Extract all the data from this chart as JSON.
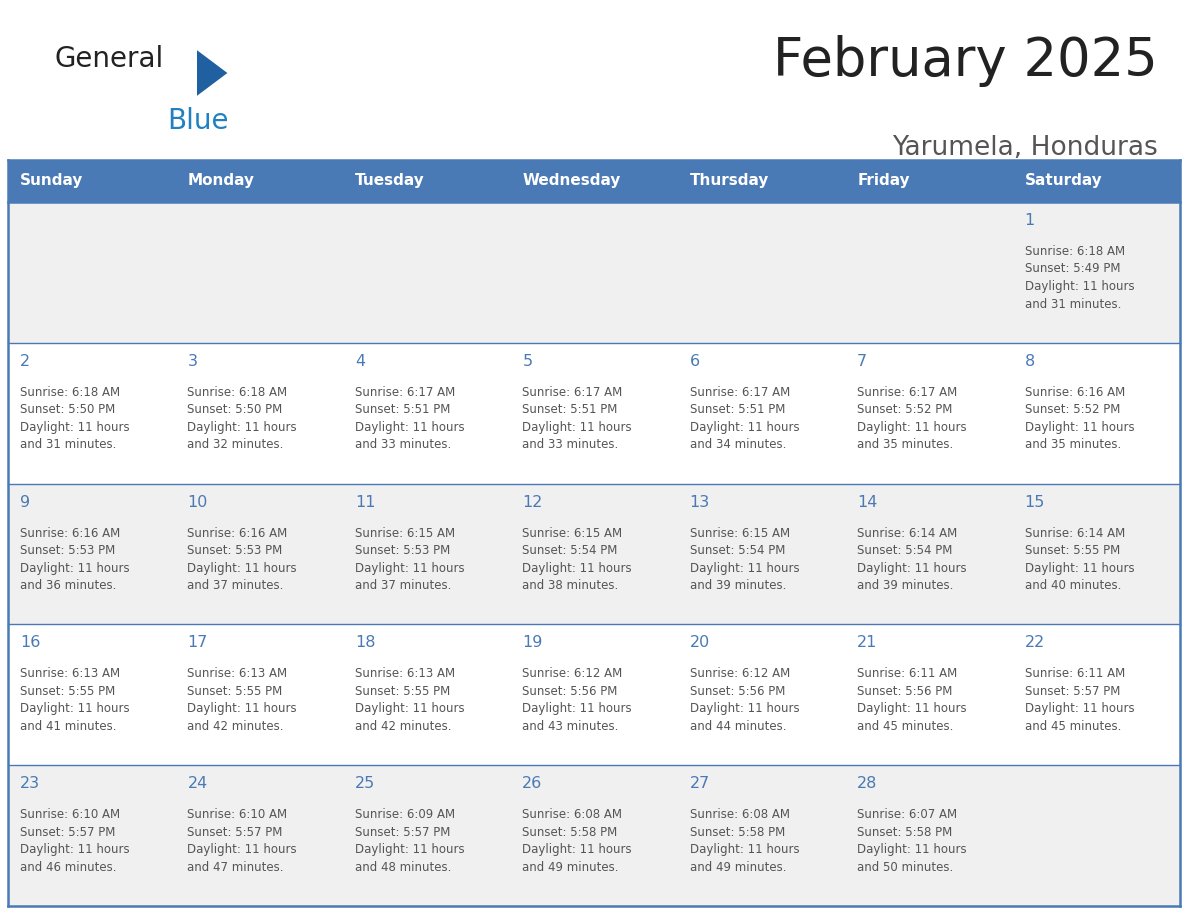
{
  "title": "February 2025",
  "subtitle": "Yarumela, Honduras",
  "days_of_week": [
    "Sunday",
    "Monday",
    "Tuesday",
    "Wednesday",
    "Thursday",
    "Friday",
    "Saturday"
  ],
  "header_bg": "#4a7ab5",
  "header_text": "#ffffff",
  "cell_bg_odd": "#f0f0f0",
  "cell_bg_even": "#ffffff",
  "border_color": "#4a7ab5",
  "day_number_color": "#4a7ab5",
  "info_text_color": "#555555",
  "title_color": "#222222",
  "subtitle_color": "#555555",
  "logo_general_color": "#222222",
  "logo_blue_color": "#2080c0",
  "logo_triangle_color": "#2060a0",
  "calendar_data": [
    {
      "day": 1,
      "row": 0,
      "col": 6,
      "sunrise": "6:18 AM",
      "sunset": "5:49 PM",
      "daylight_hours": 11,
      "daylight_minutes": 31
    },
    {
      "day": 2,
      "row": 1,
      "col": 0,
      "sunrise": "6:18 AM",
      "sunset": "5:50 PM",
      "daylight_hours": 11,
      "daylight_minutes": 31
    },
    {
      "day": 3,
      "row": 1,
      "col": 1,
      "sunrise": "6:18 AM",
      "sunset": "5:50 PM",
      "daylight_hours": 11,
      "daylight_minutes": 32
    },
    {
      "day": 4,
      "row": 1,
      "col": 2,
      "sunrise": "6:17 AM",
      "sunset": "5:51 PM",
      "daylight_hours": 11,
      "daylight_minutes": 33
    },
    {
      "day": 5,
      "row": 1,
      "col": 3,
      "sunrise": "6:17 AM",
      "sunset": "5:51 PM",
      "daylight_hours": 11,
      "daylight_minutes": 33
    },
    {
      "day": 6,
      "row": 1,
      "col": 4,
      "sunrise": "6:17 AM",
      "sunset": "5:51 PM",
      "daylight_hours": 11,
      "daylight_minutes": 34
    },
    {
      "day": 7,
      "row": 1,
      "col": 5,
      "sunrise": "6:17 AM",
      "sunset": "5:52 PM",
      "daylight_hours": 11,
      "daylight_minutes": 35
    },
    {
      "day": 8,
      "row": 1,
      "col": 6,
      "sunrise": "6:16 AM",
      "sunset": "5:52 PM",
      "daylight_hours": 11,
      "daylight_minutes": 35
    },
    {
      "day": 9,
      "row": 2,
      "col": 0,
      "sunrise": "6:16 AM",
      "sunset": "5:53 PM",
      "daylight_hours": 11,
      "daylight_minutes": 36
    },
    {
      "day": 10,
      "row": 2,
      "col": 1,
      "sunrise": "6:16 AM",
      "sunset": "5:53 PM",
      "daylight_hours": 11,
      "daylight_minutes": 37
    },
    {
      "day": 11,
      "row": 2,
      "col": 2,
      "sunrise": "6:15 AM",
      "sunset": "5:53 PM",
      "daylight_hours": 11,
      "daylight_minutes": 37
    },
    {
      "day": 12,
      "row": 2,
      "col": 3,
      "sunrise": "6:15 AM",
      "sunset": "5:54 PM",
      "daylight_hours": 11,
      "daylight_minutes": 38
    },
    {
      "day": 13,
      "row": 2,
      "col": 4,
      "sunrise": "6:15 AM",
      "sunset": "5:54 PM",
      "daylight_hours": 11,
      "daylight_minutes": 39
    },
    {
      "day": 14,
      "row": 2,
      "col": 5,
      "sunrise": "6:14 AM",
      "sunset": "5:54 PM",
      "daylight_hours": 11,
      "daylight_minutes": 39
    },
    {
      "day": 15,
      "row": 2,
      "col": 6,
      "sunrise": "6:14 AM",
      "sunset": "5:55 PM",
      "daylight_hours": 11,
      "daylight_minutes": 40
    },
    {
      "day": 16,
      "row": 3,
      "col": 0,
      "sunrise": "6:13 AM",
      "sunset": "5:55 PM",
      "daylight_hours": 11,
      "daylight_minutes": 41
    },
    {
      "day": 17,
      "row": 3,
      "col": 1,
      "sunrise": "6:13 AM",
      "sunset": "5:55 PM",
      "daylight_hours": 11,
      "daylight_minutes": 42
    },
    {
      "day": 18,
      "row": 3,
      "col": 2,
      "sunrise": "6:13 AM",
      "sunset": "5:55 PM",
      "daylight_hours": 11,
      "daylight_minutes": 42
    },
    {
      "day": 19,
      "row": 3,
      "col": 3,
      "sunrise": "6:12 AM",
      "sunset": "5:56 PM",
      "daylight_hours": 11,
      "daylight_minutes": 43
    },
    {
      "day": 20,
      "row": 3,
      "col": 4,
      "sunrise": "6:12 AM",
      "sunset": "5:56 PM",
      "daylight_hours": 11,
      "daylight_minutes": 44
    },
    {
      "day": 21,
      "row": 3,
      "col": 5,
      "sunrise": "6:11 AM",
      "sunset": "5:56 PM",
      "daylight_hours": 11,
      "daylight_minutes": 45
    },
    {
      "day": 22,
      "row": 3,
      "col": 6,
      "sunrise": "6:11 AM",
      "sunset": "5:57 PM",
      "daylight_hours": 11,
      "daylight_minutes": 45
    },
    {
      "day": 23,
      "row": 4,
      "col": 0,
      "sunrise": "6:10 AM",
      "sunset": "5:57 PM",
      "daylight_hours": 11,
      "daylight_minutes": 46
    },
    {
      "day": 24,
      "row": 4,
      "col": 1,
      "sunrise": "6:10 AM",
      "sunset": "5:57 PM",
      "daylight_hours": 11,
      "daylight_minutes": 47
    },
    {
      "day": 25,
      "row": 4,
      "col": 2,
      "sunrise": "6:09 AM",
      "sunset": "5:57 PM",
      "daylight_hours": 11,
      "daylight_minutes": 48
    },
    {
      "day": 26,
      "row": 4,
      "col": 3,
      "sunrise": "6:08 AM",
      "sunset": "5:58 PM",
      "daylight_hours": 11,
      "daylight_minutes": 49
    },
    {
      "day": 27,
      "row": 4,
      "col": 4,
      "sunrise": "6:08 AM",
      "sunset": "5:58 PM",
      "daylight_hours": 11,
      "daylight_minutes": 49
    },
    {
      "day": 28,
      "row": 4,
      "col": 5,
      "sunrise": "6:07 AM",
      "sunset": "5:58 PM",
      "daylight_hours": 11,
      "daylight_minutes": 50
    }
  ]
}
